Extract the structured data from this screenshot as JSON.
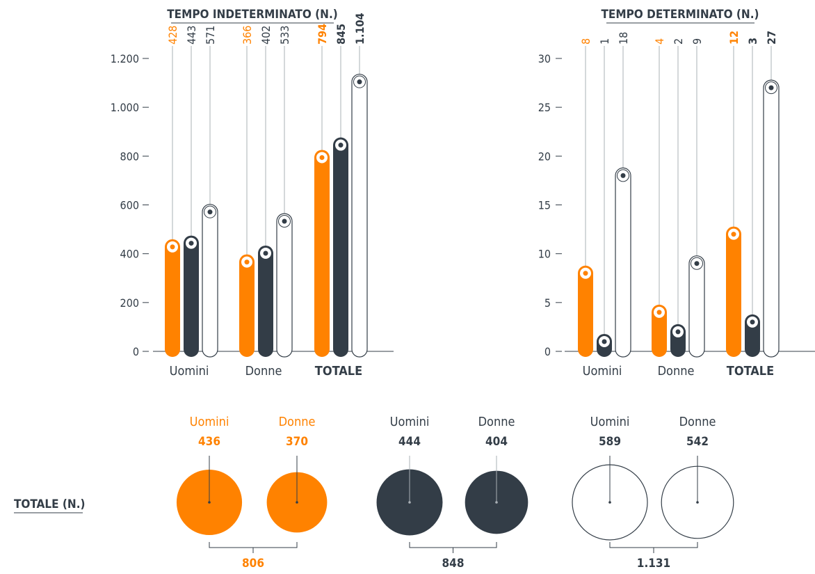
{
  "colors": {
    "orange": "#ff8200",
    "dark": "#333d47",
    "white": "#ffffff",
    "axis": "#333d47",
    "line": "#aab0b5"
  },
  "chart_data": [
    {
      "type": "bar",
      "title": "TEMPO INDETERMINATO (N.)",
      "categories": [
        "Uomini",
        "Donne",
        "TOTALE"
      ],
      "ylim": [
        0,
        1200
      ],
      "yticks": [
        0,
        200,
        400,
        600,
        800,
        1000,
        1200
      ],
      "ytick_labels": [
        "0",
        "200",
        "400",
        "600",
        "800",
        "1.000",
        "1.200"
      ],
      "series": [
        {
          "color": "orange",
          "values": [
            428,
            366,
            794
          ],
          "labels": [
            "428",
            "366",
            "794"
          ]
        },
        {
          "color": "dark",
          "values": [
            443,
            402,
            845
          ],
          "labels": [
            "443",
            "402",
            "845"
          ]
        },
        {
          "color": "white",
          "values": [
            571,
            533,
            1104
          ],
          "labels": [
            "571",
            "533",
            "1.104"
          ]
        }
      ]
    },
    {
      "type": "bar",
      "title": "TEMPO DETERMINATO (N.)",
      "categories": [
        "Uomini",
        "Donne",
        "TOTALE"
      ],
      "ylim": [
        0,
        30
      ],
      "yticks": [
        0,
        5,
        10,
        15,
        20,
        25,
        30
      ],
      "ytick_labels": [
        "0",
        "5",
        "10",
        "15",
        "20",
        "25",
        "30"
      ],
      "series": [
        {
          "color": "orange",
          "values": [
            8,
            4,
            12
          ],
          "labels": [
            "8",
            "4",
            "12"
          ]
        },
        {
          "color": "dark",
          "values": [
            1,
            2,
            3
          ],
          "labels": [
            "1",
            "2",
            "3"
          ]
        },
        {
          "color": "white",
          "values": [
            18,
            9,
            27
          ],
          "labels": [
            "18",
            "9",
            "27"
          ]
        }
      ]
    },
    {
      "type": "bubble",
      "title": "TOTALE (N.)",
      "groups": [
        {
          "color": "orange",
          "items": [
            {
              "label": "Uomini",
              "value": 436,
              "value_label": "436"
            },
            {
              "label": "Donne",
              "value": 370,
              "value_label": "370"
            }
          ],
          "total": 806,
          "total_label": "806"
        },
        {
          "color": "dark",
          "items": [
            {
              "label": "Uomini",
              "value": 444,
              "value_label": "444"
            },
            {
              "label": "Donne",
              "value": 404,
              "value_label": "404"
            }
          ],
          "total": 848,
          "total_label": "848"
        },
        {
          "color": "white",
          "items": [
            {
              "label": "Uomini",
              "value": 589,
              "value_label": "589"
            },
            {
              "label": "Donne",
              "value": 542,
              "value_label": "542"
            }
          ],
          "total": 1131,
          "total_label": "1.131"
        }
      ]
    }
  ]
}
